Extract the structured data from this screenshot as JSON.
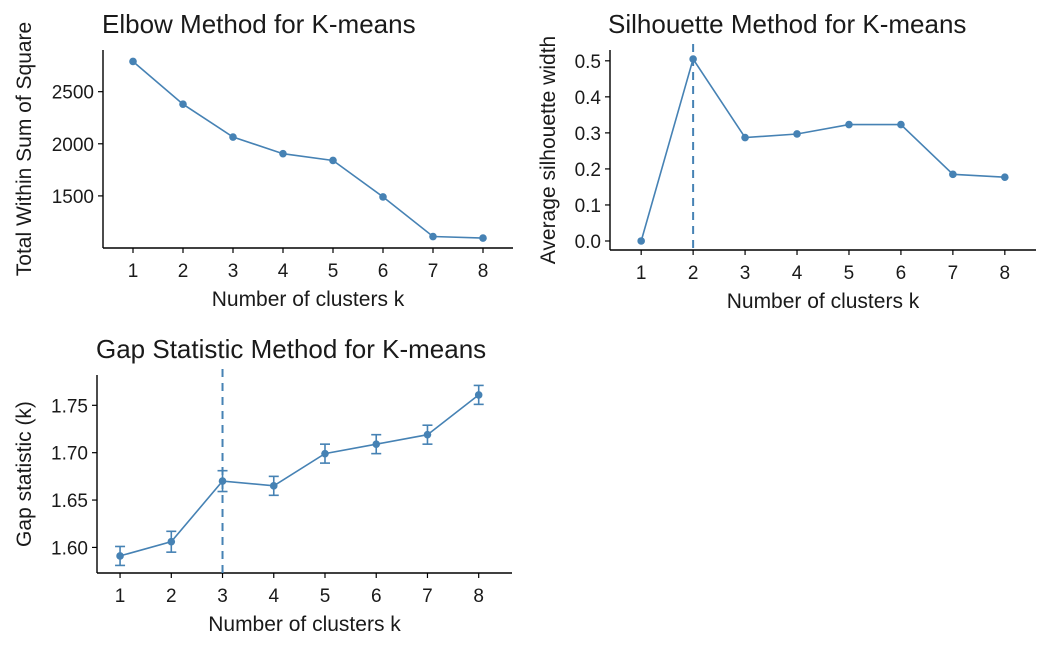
{
  "colors": {
    "series": "#4682b4",
    "axis": "#000000",
    "text": "#1a1a1a",
    "background": "#ffffff"
  },
  "chart_data": [
    {
      "id": "elbow",
      "type": "line",
      "title": "Elbow Method for K-means",
      "xlabel": "Number of clusters k",
      "ylabel": "Total Within Sum of Square",
      "x": [
        1,
        2,
        3,
        4,
        5,
        6,
        7,
        8
      ],
      "xticks": [
        "1",
        "2",
        "3",
        "4",
        "5",
        "6",
        "7",
        "8"
      ],
      "y": [
        2790,
        2380,
        2065,
        1905,
        1840,
        1490,
        1110,
        1095
      ],
      "yticks": [
        1500,
        2000,
        2500
      ],
      "ytick_labels": [
        "1500",
        "2000",
        "2500"
      ],
      "xlim": [
        0.4,
        8.6
      ],
      "ylim": [
        1000,
        2900
      ],
      "grid": false,
      "vline": null
    },
    {
      "id": "silhouette",
      "type": "line",
      "title": "Silhouette Method for K-means",
      "xlabel": "Number of clusters k",
      "ylabel": "Average silhouette width",
      "x": [
        1,
        2,
        3,
        4,
        5,
        6,
        7,
        8
      ],
      "xticks": [
        "1",
        "2",
        "3",
        "4",
        "5",
        "6",
        "7",
        "8"
      ],
      "y": [
        0.0,
        0.505,
        0.287,
        0.297,
        0.323,
        0.323,
        0.185,
        0.177
      ],
      "yticks": [
        0.0,
        0.1,
        0.2,
        0.3,
        0.4,
        0.5
      ],
      "ytick_labels": [
        "0.0",
        "0.1",
        "0.2",
        "0.3",
        "0.4",
        "0.5"
      ],
      "xlim": [
        0.4,
        8.6
      ],
      "ylim": [
        -0.025,
        0.53
      ],
      "grid": false,
      "vline": 2
    },
    {
      "id": "gap",
      "type": "line",
      "title": "Gap Statistic Method for K-means",
      "xlabel": "Number of clusters k",
      "ylabel": "Gap statistic (k)",
      "x": [
        1,
        2,
        3,
        4,
        5,
        6,
        7,
        8
      ],
      "xticks": [
        "1",
        "2",
        "3",
        "4",
        "5",
        "6",
        "7",
        "8"
      ],
      "y": [
        1.591,
        1.606,
        1.67,
        1.665,
        1.699,
        1.709,
        1.719,
        1.761
      ],
      "error": [
        0.01,
        0.011,
        0.011,
        0.01,
        0.01,
        0.01,
        0.01,
        0.01
      ],
      "yticks": [
        1.6,
        1.65,
        1.7,
        1.75
      ],
      "ytick_labels": [
        "1.60",
        "1.65",
        "1.70",
        "1.75"
      ],
      "xlim": [
        0.55,
        8.65
      ],
      "ylim": [
        1.573,
        1.782
      ],
      "grid": false,
      "vline": 3
    }
  ]
}
